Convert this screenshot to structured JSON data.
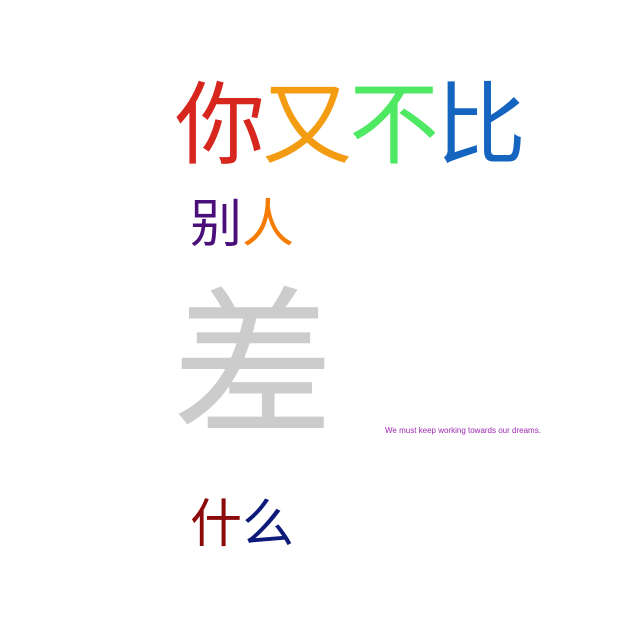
{
  "colors": {
    "red": "#d7261e",
    "orange": "#f39c12",
    "green": "#4fe862",
    "blue": "#1565c0",
    "purple": "#4b0f7a",
    "light_orange": "#f57c00",
    "gray": "#cccccc",
    "dark_red": "#8b0a0a",
    "navy": "#0d1a7a",
    "violet": "#9c27b0"
  },
  "headline": {
    "chars": [
      {
        "text": "你",
        "color": "red"
      },
      {
        "text": "又",
        "color": "orange"
      },
      {
        "text": "不",
        "color": "green"
      },
      {
        "text": "比",
        "color": "blue"
      }
    ]
  },
  "line2": {
    "chars": [
      {
        "text": "别",
        "color": "purple"
      },
      {
        "text": "人",
        "color": "light_orange"
      }
    ]
  },
  "big_char": {
    "text": "差",
    "color": "gray"
  },
  "line4": {
    "chars": [
      {
        "text": "什",
        "color": "dark_red"
      },
      {
        "text": "么",
        "color": "navy"
      }
    ]
  },
  "note": {
    "text": "We must keep working towards our dreams.",
    "color": "violet"
  }
}
